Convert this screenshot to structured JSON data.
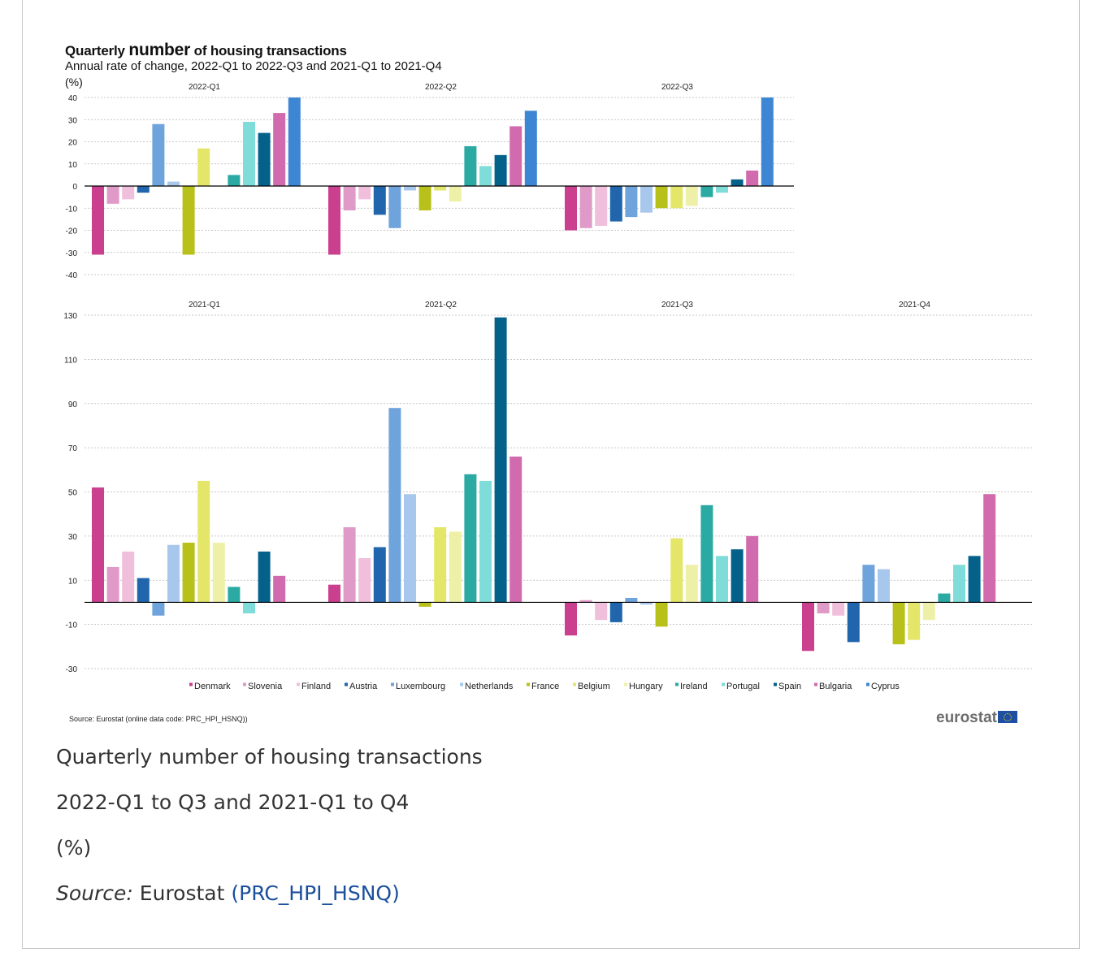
{
  "colors": {
    "Denmark": "#cb3f8f",
    "Slovenia": "#e09ac8",
    "Finland": "#f0bfdc",
    "Austria": "#2166ac",
    "Luxembourg": "#6fa3dc",
    "Netherlands": "#a7c8ec",
    "France": "#b8c01a",
    "Belgium": "#e4e66a",
    "Hungary": "#eff0a8",
    "Ireland": "#2baaa3",
    "Portugal": "#7fdcd8",
    "Spain": "#03618a",
    "Bulgaria": "#d16bae",
    "Cyprus": "#3d86d3"
  },
  "caption": {
    "title": "Quarterly number of housing transactions",
    "subtitle": "2022-Q1 to Q3 and 2021-Q1 to Q4",
    "unit": "(%)",
    "source_label": "Source:",
    "source_name": "Eurostat",
    "source_code": "(PRC_HPI_HSNQ)"
  },
  "chart_data": {
    "type": "bar",
    "title_parts": [
      "Quarterly ",
      "number",
      " of housing transactions"
    ],
    "subtitle": "Annual rate of change, 2022-Q1 to 2022-Q3 and 2021-Q1 to 2021-Q4",
    "unit": "(%)",
    "source": "Source: Eurostat (online data code: PRC_HPI_HSNQ))",
    "brand": "eurostat",
    "legend_position": "bottom",
    "grid": true,
    "categories": [
      "Denmark",
      "Slovenia",
      "Finland",
      "Austria",
      "Luxembourg",
      "Netherlands",
      "France",
      "Belgium",
      "Hungary",
      "Ireland",
      "Portugal",
      "Spain",
      "Bulgaria",
      "Cyprus"
    ],
    "panel_rows": [
      {
        "ylim": [
          -40,
          40
        ],
        "yticks": [
          40,
          30,
          20,
          10,
          0,
          -10,
          -20,
          -30,
          -40
        ],
        "ytick_labels": [
          "40",
          "30",
          "20",
          "10",
          "0",
          "-10",
          "-20",
          "-30",
          "-40"
        ],
        "panels": [
          {
            "label": "2022-Q1",
            "values": [
              -31,
              -8,
              -6,
              -3,
              28,
              2,
              -31,
              17,
              null,
              5,
              29,
              24,
              33,
              40
            ]
          },
          {
            "label": "2022-Q2",
            "values": [
              -31,
              -11,
              -6,
              -13,
              -19,
              -2,
              -11,
              -2,
              -7,
              18,
              9,
              14,
              27,
              34
            ]
          },
          {
            "label": "2022-Q3",
            "values": [
              -20,
              -19,
              -18,
              -16,
              -14,
              -12,
              -10,
              -10,
              -9,
              -5,
              -3,
              3,
              7,
              40
            ]
          }
        ]
      },
      {
        "ylim": [
          -30,
          130
        ],
        "yticks": [
          130,
          110,
          90,
          70,
          50,
          30,
          10,
          -10,
          -30
        ],
        "ytick_labels": [
          "130",
          "110",
          "90",
          "70",
          "50",
          "30",
          "10",
          "-10",
          "-30"
        ],
        "panels": [
          {
            "label": "2021-Q1",
            "values": [
              52,
              16,
              23,
              11,
              -6,
              26,
              27,
              55,
              27,
              7,
              -5,
              23,
              12,
              null
            ]
          },
          {
            "label": "2021-Q2",
            "values": [
              8,
              34,
              20,
              25,
              88,
              49,
              -2,
              34,
              32,
              58,
              55,
              129,
              66,
              null
            ]
          },
          {
            "label": "2021-Q3",
            "values": [
              -15,
              1,
              -8,
              -9,
              2,
              -1,
              -11,
              29,
              17,
              44,
              21,
              24,
              30,
              null
            ]
          },
          {
            "label": "2021-Q4",
            "values": [
              -22,
              -5,
              -6,
              -18,
              17,
              15,
              -19,
              -17,
              -8,
              4,
              17,
              21,
              49,
              null
            ]
          }
        ]
      }
    ]
  }
}
